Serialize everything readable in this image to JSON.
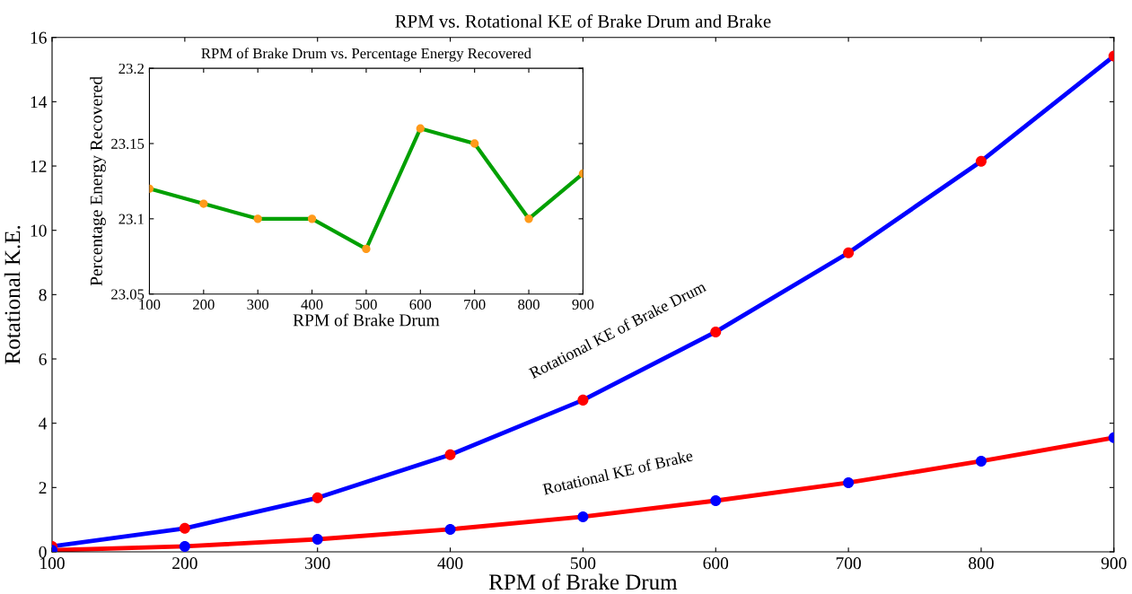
{
  "chart_data": [
    {
      "type": "line",
      "title": "RPM vs. Rotational KE of Brake Drum and Brake",
      "xlabel": "RPM of Brake Drum",
      "ylabel": "Rotational K.E.",
      "x": [
        100,
        200,
        300,
        400,
        500,
        600,
        700,
        800,
        900
      ],
      "series": [
        {
          "name": "Rotational KE of Brake Drum",
          "color": "#0000ff",
          "colors": [
            "#ff0000",
            "#ff0000",
            "#ff0000",
            "#ff0000",
            "#ff0000",
            "#ff0000",
            "#ff0000",
            "#ff0000",
            "#ff0000"
          ],
          "values": [
            0.17,
            0.73,
            1.68,
            3.02,
            4.72,
            6.84,
            9.3,
            12.15,
            15.42
          ]
        },
        {
          "name": "Rotational KE of Brake",
          "color": "#ff0000",
          "colors": [
            "#0000ff",
            "#0000ff",
            "#0000ff",
            "#0000ff",
            "#0000ff",
            "#0000ff",
            "#0000ff",
            "#0000ff",
            "#0000ff"
          ],
          "values": [
            0.05,
            0.17,
            0.39,
            0.7,
            1.09,
            1.59,
            2.15,
            2.82,
            3.55
          ]
        }
      ],
      "xlim": [
        100,
        900
      ],
      "xticks": [
        100,
        200,
        300,
        400,
        500,
        600,
        700,
        800,
        900
      ],
      "ylim": [
        0,
        16
      ],
      "yticks": [
        0,
        2,
        4,
        6,
        8,
        10,
        12,
        14,
        16
      ],
      "marker": "circle",
      "line_style": "solid",
      "grid": false,
      "legend": false
    },
    {
      "type": "line",
      "title": "RPM of Brake Drum vs. Percentage Energy Recovered",
      "xlabel": "RPM of Brake Drum",
      "ylabel": "Percentage Energy Recovered",
      "x": [
        100,
        200,
        300,
        400,
        500,
        600,
        700,
        800,
        900
      ],
      "series": [
        {
          "color": "#00a000",
          "colors": [
            "#ff9a1a",
            "#ff9a1a",
            "#ff9a1a",
            "#ff9a1a",
            "#ff9a1a",
            "#ff9a1a",
            "#ff9a1a",
            "#ff9a1a",
            "#ff9a1a"
          ],
          "values": [
            23.12,
            23.11,
            23.1,
            23.1,
            23.08,
            23.16,
            23.15,
            23.1,
            23.13
          ]
        }
      ],
      "xlim": [
        100,
        900
      ],
      "xticks": [
        100,
        200,
        300,
        400,
        500,
        600,
        700,
        800,
        900
      ],
      "ylim": [
        23.05,
        23.2
      ],
      "yticks": [
        23.05,
        23.1,
        23.15,
        23.2
      ],
      "marker": "circle",
      "line_style": "solid",
      "grid": false,
      "legend": false
    }
  ]
}
